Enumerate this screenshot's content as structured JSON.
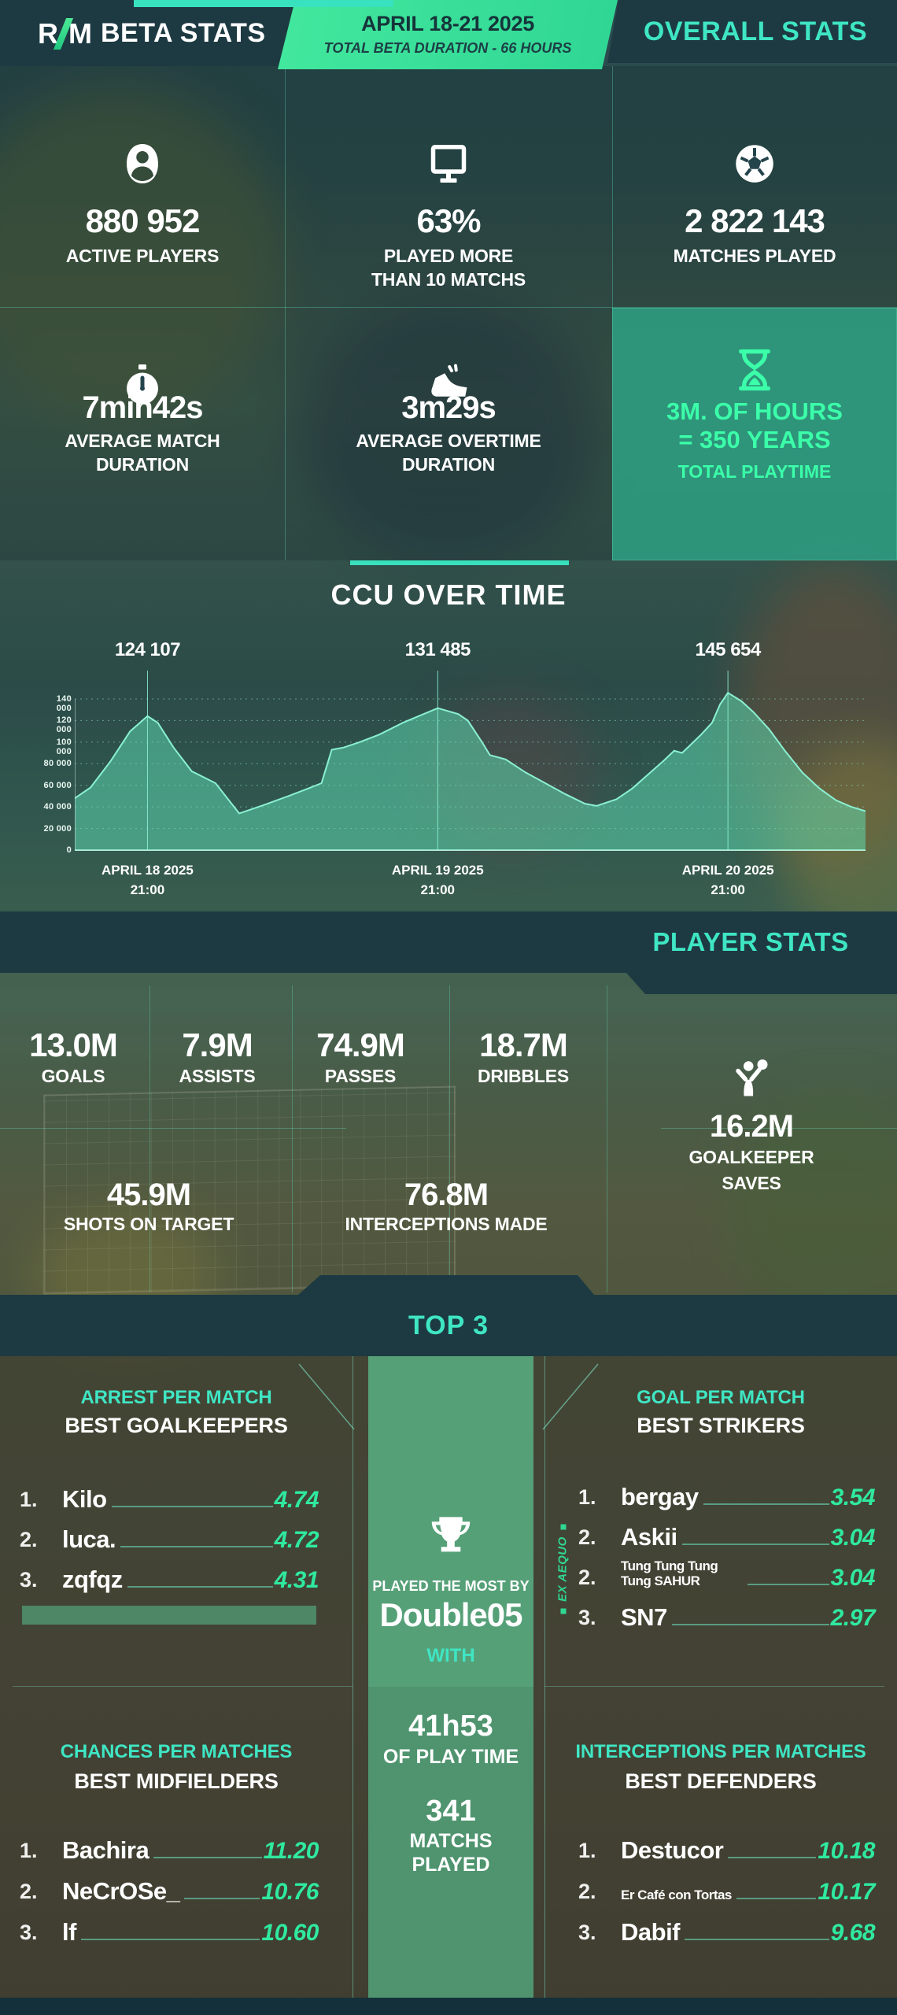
{
  "header": {
    "logo_r": "R",
    "logo_m": "M",
    "title": "BETA STATS",
    "banner_line1": "APRIL 18-21 2025",
    "banner_line2": "TOTAL BETA DURATION - 66 HOURS",
    "right_title": "OVERALL STATS"
  },
  "overall_stats": {
    "active_players": {
      "icon": "player-icon",
      "value": "880 952",
      "label": "ACTIVE PLAYERS"
    },
    "played_more": {
      "icon": "monitor-icon",
      "value": "63%",
      "label": "PLAYED MORE THAN 10 MATCHS"
    },
    "matches_played": {
      "icon": "soccer-ball-icon",
      "value": "2 822 143",
      "label": "MATCHES PLAYED"
    },
    "avg_match": {
      "icon": "stopwatch-icon",
      "value": "7min42s",
      "label": "AVERAGE MATCH DURATION"
    },
    "avg_overtime": {
      "icon": "boot-icon",
      "value": "3m29s",
      "label": "AVERAGE OVERTIME DURATION"
    },
    "total_playtime": {
      "icon": "hourglass-icon",
      "value_line1": "3M. OF HOURS",
      "value_line2": "= 350 YEARS",
      "label": "TOTAL PLAYTIME"
    }
  },
  "chart_data": {
    "type": "area",
    "title": "CCU OVER TIME",
    "ylim": [
      0,
      150000
    ],
    "yticks": [
      0,
      20000,
      40000,
      60000,
      80000,
      100000,
      120000,
      140000
    ],
    "ytick_labels": [
      "0",
      "20 000",
      "40 000",
      "60 000",
      "80 000",
      "100 000",
      "120 000",
      "140 000"
    ],
    "grid": "dashed-horizontal",
    "x_annotations": [
      {
        "frac": 0.092,
        "peak_label": "124 107",
        "date": "APRIL 18 2025",
        "time": "21:00"
      },
      {
        "frac": 0.459,
        "peak_label": "131 485",
        "date": "APRIL 19 2025",
        "time": "21:00"
      },
      {
        "frac": 0.826,
        "peak_label": "145 654",
        "date": "APRIL 20 2025",
        "time": "21:00"
      }
    ],
    "series": [
      {
        "name": "CCU",
        "points": [
          [
            0,
            48000
          ],
          [
            0.02,
            58000
          ],
          [
            0.045,
            82000
          ],
          [
            0.07,
            110000
          ],
          [
            0.092,
            124107
          ],
          [
            0.105,
            118000
          ],
          [
            0.125,
            95000
          ],
          [
            0.148,
            73000
          ],
          [
            0.178,
            62000
          ],
          [
            0.208,
            34000
          ],
          [
            0.24,
            42000
          ],
          [
            0.27,
            50000
          ],
          [
            0.295,
            57000
          ],
          [
            0.312,
            62000
          ],
          [
            0.325,
            93000
          ],
          [
            0.34,
            95000
          ],
          [
            0.36,
            100000
          ],
          [
            0.385,
            107000
          ],
          [
            0.415,
            118000
          ],
          [
            0.459,
            131485
          ],
          [
            0.485,
            126000
          ],
          [
            0.497,
            120000
          ],
          [
            0.515,
            100000
          ],
          [
            0.525,
            88000
          ],
          [
            0.545,
            84000
          ],
          [
            0.57,
            72000
          ],
          [
            0.595,
            62000
          ],
          [
            0.62,
            52000
          ],
          [
            0.645,
            43000
          ],
          [
            0.66,
            41000
          ],
          [
            0.685,
            47000
          ],
          [
            0.705,
            57000
          ],
          [
            0.725,
            70000
          ],
          [
            0.745,
            83000
          ],
          [
            0.758,
            92000
          ],
          [
            0.768,
            90000
          ],
          [
            0.778,
            97000
          ],
          [
            0.792,
            107000
          ],
          [
            0.806,
            118000
          ],
          [
            0.816,
            135000
          ],
          [
            0.826,
            145654
          ],
          [
            0.843,
            138000
          ],
          [
            0.858,
            128000
          ],
          [
            0.878,
            112000
          ],
          [
            0.898,
            92000
          ],
          [
            0.92,
            72000
          ],
          [
            0.942,
            57000
          ],
          [
            0.963,
            46000
          ],
          [
            0.982,
            40000
          ],
          [
            1,
            36000
          ]
        ]
      }
    ]
  },
  "player_stats": {
    "section_title": "PLAYER STATS",
    "goals": {
      "value": "13.0M",
      "label": "GOALS"
    },
    "assists": {
      "value": "7.9M",
      "label": "ASSISTS"
    },
    "passes": {
      "value": "74.9M",
      "label": "PASSES"
    },
    "dribbles": {
      "value": "18.7M",
      "label": "DRIBBLES"
    },
    "shots": {
      "value": "45.9M",
      "label": "SHOTS ON TARGET"
    },
    "interceptions": {
      "value": "76.8M",
      "label": "INTERCEPTIONS MADE"
    },
    "saves": {
      "icon": "goalkeeper-icon",
      "value": "16.2M",
      "label_line1": "GOALKEEPER",
      "label_line2": "SAVES"
    }
  },
  "top3": {
    "section_title": "TOP 3",
    "goalkeepers": {
      "stat_label": "ARREST PER MATCH",
      "title": "BEST GOALKEEPERS",
      "rows": [
        {
          "rank": "1.",
          "name": "Kilo",
          "value": "4.74"
        },
        {
          "rank": "2.",
          "name": "luca.",
          "value": "4.72"
        },
        {
          "rank": "3.",
          "name": "zqfqz",
          "value": "4.31"
        }
      ]
    },
    "strikers": {
      "stat_label": "GOAL PER MATCH",
      "title": "BEST STRIKERS",
      "ex_aequo": "EX AEQUO",
      "rows": [
        {
          "rank": "1.",
          "name": "bergay",
          "value": "3.54"
        },
        {
          "rank": "2.",
          "name": "Askii",
          "value": "3.04"
        },
        {
          "rank": "2.",
          "name": "Tung Tung Tung Tung SAHUR",
          "value": "3.04"
        },
        {
          "rank": "3.",
          "name": "SN7",
          "value": "2.97"
        }
      ]
    },
    "midfielders": {
      "stat_label": "CHANCES PER MATCHES",
      "title": "BEST MIDFIELDERS",
      "rows": [
        {
          "rank": "1.",
          "name": "Bachira",
          "value": "11.20"
        },
        {
          "rank": "2.",
          "name": "NeCrOSe_",
          "value": "10.76"
        },
        {
          "rank": "3.",
          "name": "lf",
          "value": "10.60"
        }
      ]
    },
    "defenders": {
      "stat_label": "INTERCEPTIONS PER MATCHES",
      "title": "BEST DEFENDERS",
      "rows": [
        {
          "rank": "1.",
          "name": "Destucor",
          "value": "10.18"
        },
        {
          "rank": "2.",
          "name": "Er Café con Tortas",
          "value": "10.17"
        },
        {
          "rank": "3.",
          "name": "Dabif",
          "value": "9.68"
        }
      ]
    },
    "mvp": {
      "icon": "trophy-icon",
      "played_most_label": "PLAYED THE MOST BY",
      "player": "Double05",
      "with_label": "WITH",
      "playtime_value": "41h53",
      "playtime_label": "OF PLAY TIME",
      "matches_value": "341",
      "matches_label_line1": "MATCHS",
      "matches_label_line2": "PLAYED"
    }
  },
  "colors": {
    "accent_teal": "#3FE6C4",
    "accent_green": "#2FE9A0",
    "banner_green": "#3DE29B",
    "panel_dark": "#1D3A42",
    "highlight_cell": "#2E9E82"
  }
}
